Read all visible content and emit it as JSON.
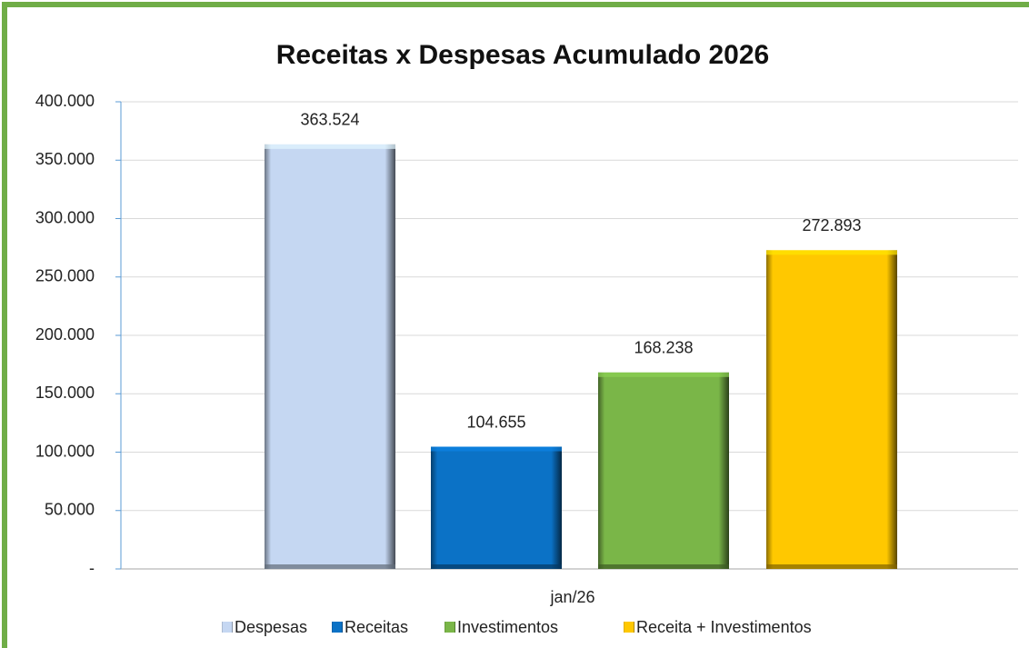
{
  "chart_data": {
    "type": "bar",
    "title": "Receitas x Despesas Acumulado 2026",
    "categories": [
      "jan/26"
    ],
    "series": [
      {
        "name": "Despesas",
        "color": "#c5d7f2",
        "values": [
          363524
        ],
        "value_labels": [
          "363.524"
        ]
      },
      {
        "name": "Receitas",
        "color": "#0b72c6",
        "values": [
          104655
        ],
        "value_labels": [
          "104.655"
        ]
      },
      {
        "name": "Investimentos",
        "color": "#7ab648",
        "values": [
          168238
        ],
        "value_labels": [
          "168.238"
        ]
      },
      {
        "name": "Receita + Investimentos",
        "color": "#ffc800",
        "values": [
          272893
        ],
        "value_labels": [
          "272.893"
        ]
      }
    ],
    "ylim": [
      0,
      400000
    ],
    "yticks": [
      {
        "value": 0,
        "label": "-"
      },
      {
        "value": 50000,
        "label": "50.000"
      },
      {
        "value": 100000,
        "label": "100.000"
      },
      {
        "value": 150000,
        "label": "150.000"
      },
      {
        "value": 200000,
        "label": "200.000"
      },
      {
        "value": 250000,
        "label": "250.000"
      },
      {
        "value": 300000,
        "label": "300.000"
      },
      {
        "value": 350000,
        "label": "350.000"
      },
      {
        "value": 400000,
        "label": "400.000"
      }
    ],
    "grid": true,
    "legend": "bottom"
  }
}
